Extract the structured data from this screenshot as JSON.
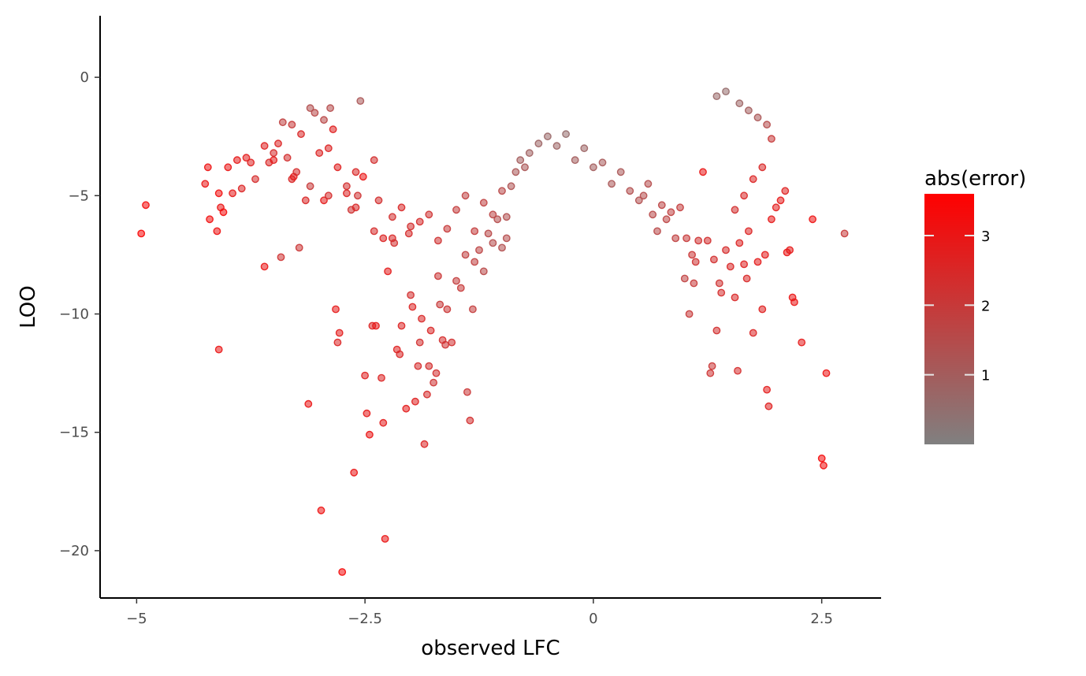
{
  "chart_data": {
    "type": "scatter",
    "xlabel": "observed LFC",
    "ylabel": "LOO",
    "xlim": [
      -5.4,
      3.15
    ],
    "ylim": [
      -22,
      2.6
    ],
    "x_ticks": [
      -5,
      -2.5,
      0,
      2.5
    ],
    "x_tick_labels": [
      "−5",
      "−2.5",
      "0",
      "2.5"
    ],
    "y_ticks": [
      0,
      -5,
      -10,
      -15,
      -20
    ],
    "y_tick_labels": [
      "0",
      "−5",
      "−10",
      "−15",
      "−20"
    ],
    "grid": false,
    "color_scale": {
      "title": "abs(error)",
      "low_color": "#808080",
      "high_color": "#ff0000",
      "min": 0.0,
      "max": 3.6,
      "ticks": [
        1,
        2,
        3
      ],
      "tick_labels": [
        "1",
        "2",
        "3"
      ]
    },
    "legend_position": "right",
    "point_opacity": 0.55,
    "points": [
      [
        -4.95,
        -6.6,
        3.4
      ],
      [
        -4.9,
        -5.4,
        3.3
      ],
      [
        -4.25,
        -4.5,
        3.0
      ],
      [
        -4.22,
        -3.8,
        3.1
      ],
      [
        -4.2,
        -6.0,
        3.2
      ],
      [
        -4.12,
        -6.5,
        3.1
      ],
      [
        -4.1,
        -4.9,
        3.2
      ],
      [
        -4.08,
        -5.5,
        3.0
      ],
      [
        -4.05,
        -5.7,
        3.3
      ],
      [
        -4.0,
        -3.8,
        3.0
      ],
      [
        -4.1,
        -11.5,
        3.0
      ],
      [
        -3.95,
        -4.9,
        2.9
      ],
      [
        -3.9,
        -3.5,
        2.9
      ],
      [
        -3.85,
        -4.7,
        2.6
      ],
      [
        -3.8,
        -3.4,
        2.8
      ],
      [
        -3.75,
        -3.6,
        2.7
      ],
      [
        -3.7,
        -4.3,
        2.4
      ],
      [
        -3.6,
        -8.0,
        3.0
      ],
      [
        -3.55,
        -3.6,
        2.5
      ],
      [
        -3.5,
        -3.2,
        2.4
      ],
      [
        -3.45,
        -2.8,
        2.6
      ],
      [
        -3.42,
        -7.6,
        2.2
      ],
      [
        -3.4,
        -1.9,
        1.8
      ],
      [
        -3.35,
        -3.4,
        2.3
      ],
      [
        -3.3,
        -4.3,
        2.5
      ],
      [
        -3.28,
        -4.2,
        2.8
      ],
      [
        -3.25,
        -4.0,
        2.4
      ],
      [
        -3.22,
        -7.2,
        2.1
      ],
      [
        -3.2,
        -2.4,
        2.5
      ],
      [
        -3.15,
        -5.2,
        2.5
      ],
      [
        -3.12,
        -13.8,
        3.0
      ],
      [
        -3.1,
        -4.6,
        2.0
      ],
      [
        -3.05,
        -1.5,
        1.6
      ],
      [
        -3.0,
        -3.2,
        2.6
      ],
      [
        -2.98,
        -18.3,
        3.1
      ],
      [
        -2.95,
        -5.2,
        2.8
      ],
      [
        -2.9,
        -5.0,
        2.4
      ],
      [
        -2.88,
        -1.3,
        1.5
      ],
      [
        -2.85,
        -2.2,
        2.7
      ],
      [
        -2.82,
        -9.8,
        2.9
      ],
      [
        -2.8,
        -11.2,
        2.6
      ],
      [
        -2.78,
        -10.8,
        2.8
      ],
      [
        -2.75,
        -20.9,
        3.3
      ],
      [
        -2.7,
        -4.6,
        2.3
      ],
      [
        -2.65,
        -5.6,
        2.2
      ],
      [
        -2.62,
        -16.7,
        3.0
      ],
      [
        -2.6,
        -4.0,
        2.5
      ],
      [
        -2.58,
        -5.0,
        2.2
      ],
      [
        -2.55,
        -1.0,
        1.2
      ],
      [
        -2.52,
        -4.2,
        3.0
      ],
      [
        -2.5,
        -12.6,
        2.7
      ],
      [
        -2.48,
        -14.2,
        2.9
      ],
      [
        -2.45,
        -15.1,
        3.0
      ],
      [
        -2.42,
        -10.5,
        2.6
      ],
      [
        -2.4,
        -3.5,
        2.3
      ],
      [
        -2.38,
        -10.5,
        2.9
      ],
      [
        -2.35,
        -5.2,
        2.3
      ],
      [
        -2.32,
        -12.7,
        2.6
      ],
      [
        -2.3,
        -14.6,
        2.8
      ],
      [
        -2.28,
        -19.5,
        3.0
      ],
      [
        -2.25,
        -8.2,
        2.8
      ],
      [
        -2.2,
        -6.8,
        2.5
      ],
      [
        -2.18,
        -7.0,
        2.3
      ],
      [
        -2.15,
        -11.5,
        2.7
      ],
      [
        -2.12,
        -11.7,
        2.5
      ],
      [
        -2.1,
        -10.5,
        2.6
      ],
      [
        -2.05,
        -14.0,
        2.8
      ],
      [
        -2.02,
        -6.6,
        2.4
      ],
      [
        -2.0,
        -9.2,
        2.3
      ],
      [
        -1.98,
        -9.7,
        2.6
      ],
      [
        -1.95,
        -13.7,
        2.7
      ],
      [
        -1.92,
        -12.2,
        2.4
      ],
      [
        -1.9,
        -11.2,
        2.3
      ],
      [
        -1.88,
        -10.2,
        2.5
      ],
      [
        -1.85,
        -15.5,
        2.6
      ],
      [
        -1.82,
        -13.4,
        2.4
      ],
      [
        -1.8,
        -12.2,
        2.3
      ],
      [
        -1.78,
        -10.7,
        2.5
      ],
      [
        -1.75,
        -12.9,
        2.2
      ],
      [
        -1.72,
        -12.5,
        2.3
      ],
      [
        -1.7,
        -8.4,
        2.1
      ],
      [
        -1.68,
        -9.6,
        2.0
      ],
      [
        -1.65,
        -11.1,
        2.4
      ],
      [
        -1.62,
        -11.3,
        2.2
      ],
      [
        -1.6,
        -9.8,
        2.1
      ],
      [
        -1.55,
        -11.2,
        2.3
      ],
      [
        -1.5,
        -8.6,
        1.9
      ],
      [
        -1.45,
        -8.9,
        2.0
      ],
      [
        -1.4,
        -7.5,
        1.8
      ],
      [
        -1.38,
        -13.3,
        2.1
      ],
      [
        -1.35,
        -14.5,
        2.3
      ],
      [
        -1.32,
        -9.8,
        1.9
      ],
      [
        -1.3,
        -7.8,
        1.8
      ],
      [
        -1.25,
        -7.3,
        1.7
      ],
      [
        -1.2,
        -8.2,
        1.6
      ],
      [
        -1.15,
        -6.6,
        1.6
      ],
      [
        -1.1,
        -7.0,
        1.5
      ],
      [
        -1.05,
        -6.0,
        1.5
      ],
      [
        -1.0,
        -7.2,
        1.4
      ],
      [
        -0.95,
        -5.9,
        1.4
      ],
      [
        -0.9,
        -4.6,
        1.3
      ],
      [
        -0.85,
        -4.0,
        1.2
      ],
      [
        -0.8,
        -3.5,
        1.0
      ],
      [
        -0.75,
        -3.8,
        1.2
      ],
      [
        -0.7,
        -3.2,
        0.9
      ],
      [
        -0.6,
        -2.8,
        0.8
      ],
      [
        -0.5,
        -2.5,
        0.7
      ],
      [
        -0.4,
        -2.9,
        0.8
      ],
      [
        -0.3,
        -2.4,
        0.6
      ],
      [
        -0.2,
        -3.5,
        1.0
      ],
      [
        -0.1,
        -3.0,
        0.8
      ],
      [
        0.0,
        -3.8,
        1.0
      ],
      [
        0.1,
        -3.6,
        1.1
      ],
      [
        0.2,
        -4.5,
        1.2
      ],
      [
        0.3,
        -4.0,
        1.2
      ],
      [
        0.4,
        -4.8,
        1.4
      ],
      [
        0.5,
        -5.2,
        1.4
      ],
      [
        0.55,
        -5.0,
        1.5
      ],
      [
        0.6,
        -4.5,
        1.5
      ],
      [
        0.65,
        -5.8,
        1.6
      ],
      [
        0.7,
        -6.5,
        1.6
      ],
      [
        0.75,
        -5.4,
        1.7
      ],
      [
        0.8,
        -6.0,
        1.7
      ],
      [
        0.85,
        -5.7,
        1.8
      ],
      [
        0.9,
        -6.8,
        1.8
      ],
      [
        0.95,
        -5.5,
        1.9
      ],
      [
        1.0,
        -8.5,
        1.8
      ],
      [
        1.02,
        -6.8,
        2.0
      ],
      [
        1.05,
        -10.0,
        2.0
      ],
      [
        1.08,
        -7.5,
        2.1
      ],
      [
        1.1,
        -8.7,
        2.0
      ],
      [
        1.12,
        -7.8,
        2.2
      ],
      [
        1.15,
        -6.9,
        2.2
      ],
      [
        1.2,
        -4.0,
        3.0
      ],
      [
        1.25,
        -6.9,
        2.3
      ],
      [
        1.28,
        -12.5,
        2.2
      ],
      [
        1.3,
        -12.2,
        2.1
      ],
      [
        1.32,
        -7.7,
        2.3
      ],
      [
        1.35,
        -10.7,
        2.3
      ],
      [
        1.38,
        -8.7,
        2.2
      ],
      [
        1.4,
        -9.1,
        2.4
      ],
      [
        1.45,
        -7.3,
        2.4
      ],
      [
        1.5,
        -8.0,
        2.5
      ],
      [
        1.55,
        -9.3,
        2.5
      ],
      [
        1.58,
        -12.4,
        2.4
      ],
      [
        1.6,
        -7.0,
        2.6
      ],
      [
        1.65,
        -7.9,
        2.7
      ],
      [
        1.68,
        -8.5,
        2.5
      ],
      [
        1.7,
        -6.5,
        2.6
      ],
      [
        1.75,
        -10.8,
        2.6
      ],
      [
        1.8,
        -7.8,
        2.8
      ],
      [
        1.85,
        -9.8,
        2.7
      ],
      [
        1.88,
        -7.5,
        2.8
      ],
      [
        1.9,
        -13.2,
        2.8
      ],
      [
        1.92,
        -13.9,
        2.7
      ],
      [
        1.95,
        -6.0,
        2.9
      ],
      [
        2.0,
        -5.5,
        2.8
      ],
      [
        2.05,
        -5.2,
        2.9
      ],
      [
        2.1,
        -4.8,
        2.7
      ],
      [
        2.12,
        -7.4,
        3.0
      ],
      [
        2.15,
        -7.3,
        2.9
      ],
      [
        2.18,
        -9.3,
        3.0
      ],
      [
        2.2,
        -9.5,
        3.0
      ],
      [
        2.28,
        -11.2,
        2.9
      ],
      [
        2.4,
        -6.0,
        3.1
      ],
      [
        2.5,
        -16.1,
        3.3
      ],
      [
        2.52,
        -16.4,
        3.2
      ],
      [
        2.55,
        -12.5,
        3.1
      ],
      [
        2.75,
        -6.6,
        2.0
      ],
      [
        -1.9,
        -6.1,
        2.4
      ],
      [
        -1.8,
        -5.8,
        2.2
      ],
      [
        -1.7,
        -6.9,
        2.2
      ],
      [
        -1.6,
        -6.4,
        2.0
      ],
      [
        -1.5,
        -5.6,
        1.9
      ],
      [
        -2.3,
        -6.8,
        2.6
      ],
      [
        -2.4,
        -6.5,
        2.4
      ],
      [
        -2.6,
        -5.5,
        2.5
      ],
      [
        -2.7,
        -4.9,
        2.6
      ],
      [
        -2.8,
        -3.8,
        2.7
      ],
      [
        -2.9,
        -3.0,
        2.6
      ],
      [
        -2.2,
        -5.9,
        2.3
      ],
      [
        -2.1,
        -5.5,
        2.5
      ],
      [
        -2.0,
        -6.3,
        2.3
      ],
      [
        -1.4,
        -5.0,
        1.8
      ],
      [
        -1.3,
        -6.5,
        1.9
      ],
      [
        -1.2,
        -5.3,
        1.8
      ],
      [
        -1.1,
        -5.8,
        1.7
      ],
      [
        -1.0,
        -4.8,
        1.6
      ],
      [
        -0.95,
        -6.8,
        1.5
      ],
      [
        1.55,
        -5.6,
        2.3
      ],
      [
        1.65,
        -5.0,
        2.5
      ],
      [
        1.75,
        -4.3,
        2.6
      ],
      [
        1.85,
        -3.8,
        2.5
      ],
      [
        1.95,
        -2.6,
        2.0
      ],
      [
        1.9,
        -2.0,
        1.5
      ],
      [
        1.8,
        -1.7,
        1.2
      ],
      [
        1.7,
        -1.4,
        1.0
      ],
      [
        1.6,
        -1.1,
        0.8
      ],
      [
        1.45,
        -0.6,
        0.6
      ],
      [
        1.35,
        -0.8,
        0.7
      ],
      [
        -3.1,
        -1.3,
        1.4
      ],
      [
        -2.95,
        -1.8,
        1.6
      ],
      [
        -3.3,
        -2.0,
        2.0
      ],
      [
        -3.5,
        -3.5,
        2.8
      ],
      [
        -3.6,
        -2.9,
        2.7
      ]
    ]
  }
}
